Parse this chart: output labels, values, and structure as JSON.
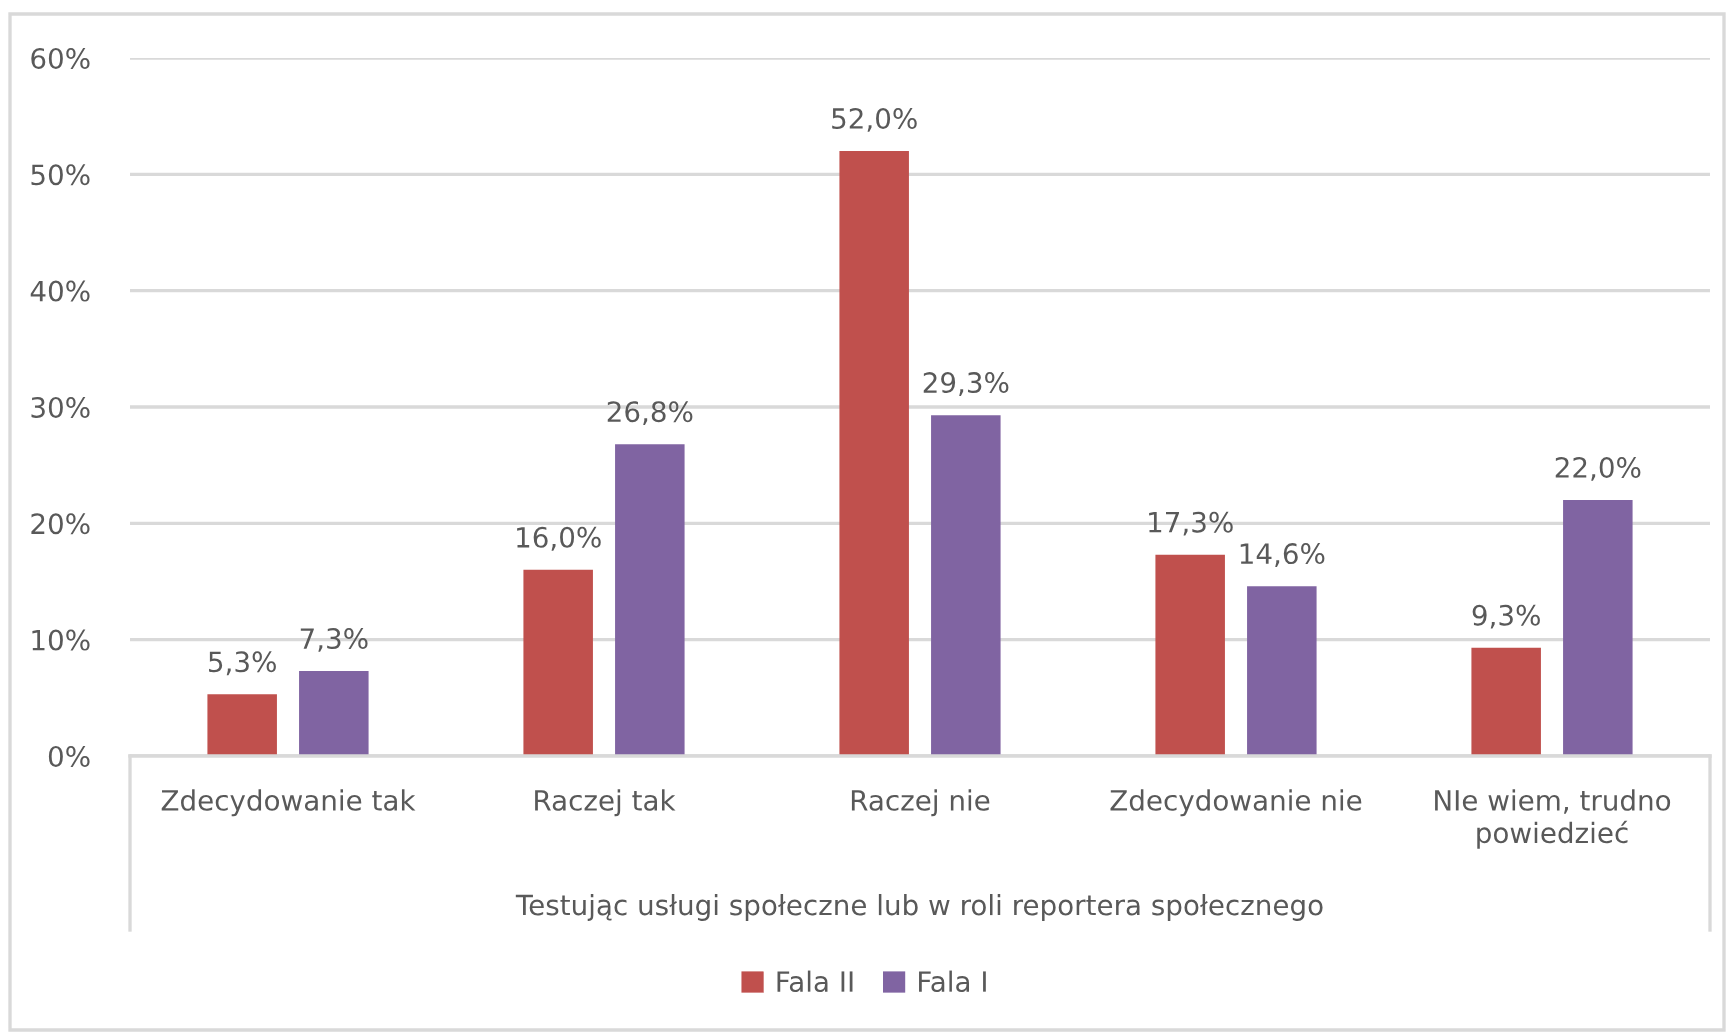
{
  "chart_data": {
    "type": "bar",
    "xlabel": "Testując usługi społeczne lub w roli reportera społecznego",
    "categories": [
      "Zdecydowanie tak",
      "Raczej tak",
      "Raczej nie",
      "Zdecydowanie nie",
      "NIe wiem, trudno\npowiedzieć"
    ],
    "series": [
      {
        "name": "Fala II",
        "color": "#c0504d",
        "values": [
          5.3,
          16.0,
          52.0,
          17.3,
          9.3
        ],
        "value_labels": [
          "5,3%",
          "16,0%",
          "52,0%",
          "17,3%",
          "9,3%"
        ]
      },
      {
        "name": "Fala I",
        "color": "#8064a2",
        "values": [
          7.3,
          26.8,
          29.3,
          14.6,
          22.0
        ],
        "value_labels": [
          "7,3%",
          "26,8%",
          "29,3%",
          "14,6%",
          "22,0%"
        ]
      }
    ],
    "ylim": [
      0,
      60
    ],
    "yticks": [
      {
        "value": 0,
        "label": "0%"
      },
      {
        "value": 10,
        "label": "10%"
      },
      {
        "value": 20,
        "label": "20%"
      },
      {
        "value": 30,
        "label": "30%"
      },
      {
        "value": 40,
        "label": "40%"
      },
      {
        "value": 50,
        "label": "50%"
      },
      {
        "value": 60,
        "label": "60%"
      }
    ],
    "grid": "y",
    "legend": "bottom"
  }
}
